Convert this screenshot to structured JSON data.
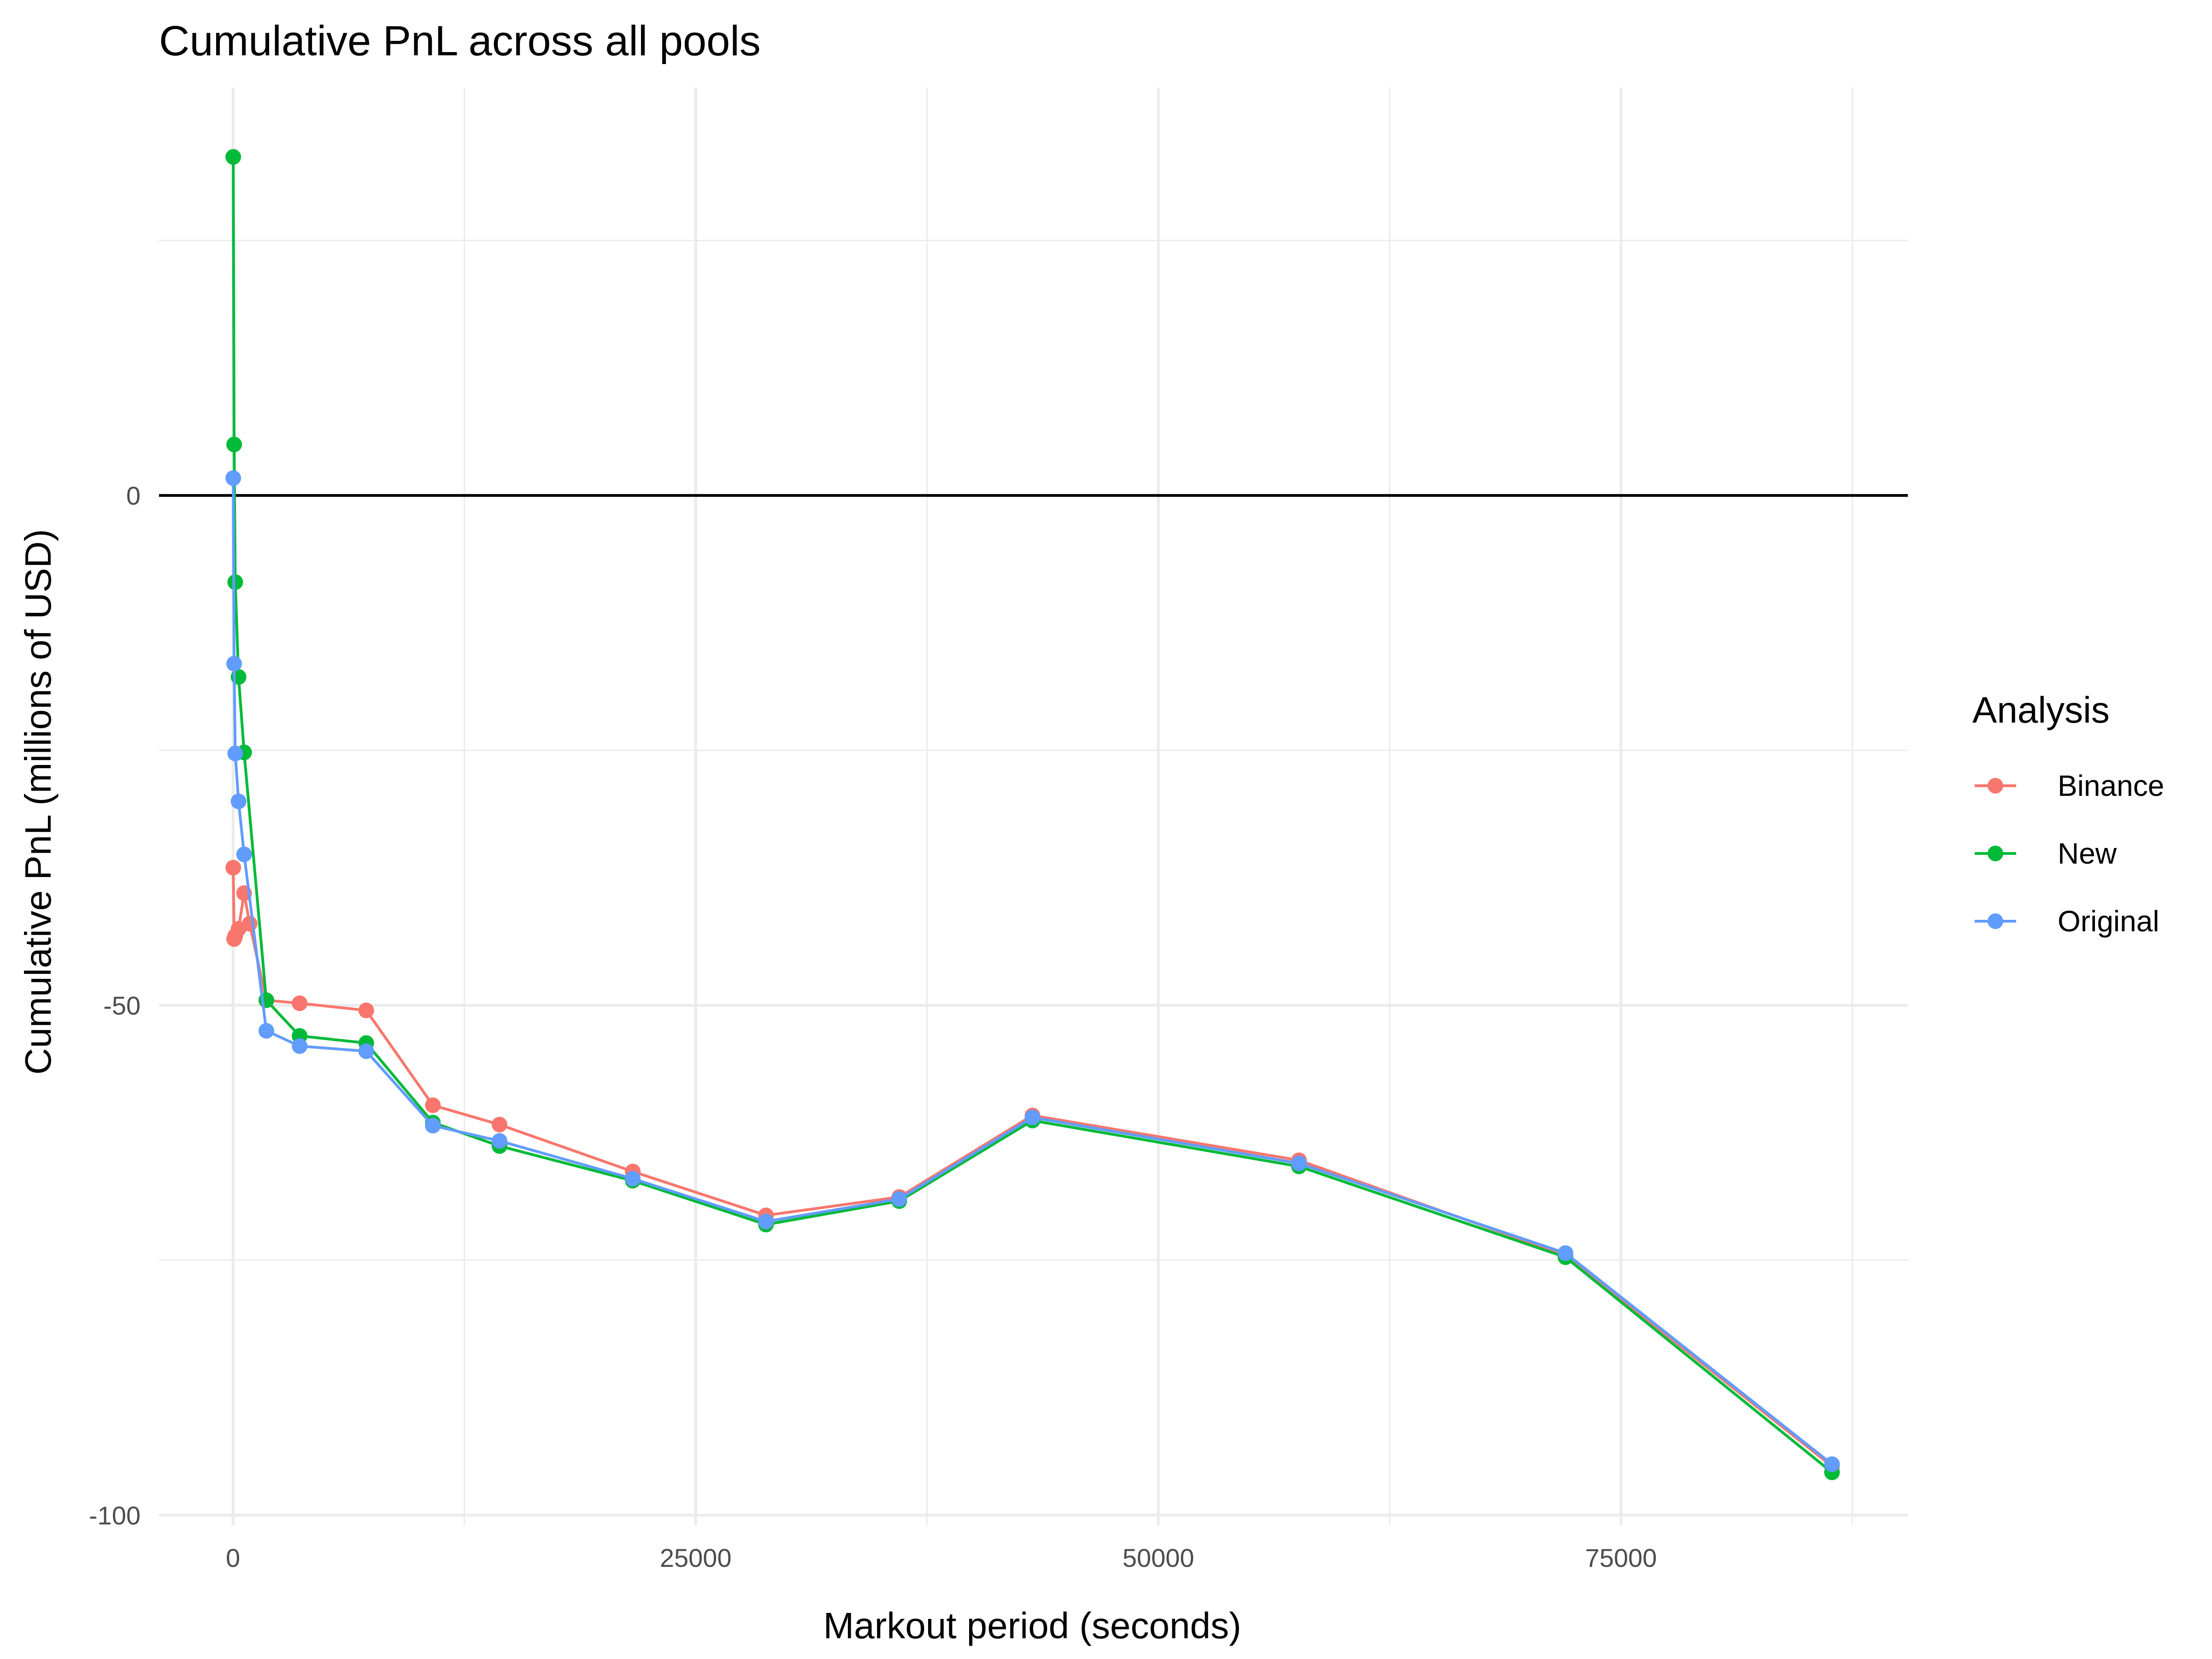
{
  "chart_data": {
    "type": "line",
    "title": "Cumulative PnL across all pools",
    "xlabel": "Markout period (seconds)",
    "ylabel": "Cumulative PnL (millions of USD)",
    "xlim": [
      -4000,
      90500
    ],
    "ylim": [
      -101,
      40
    ],
    "x_ticks": [
      0,
      25000,
      50000,
      75000
    ],
    "x_tick_labels": [
      "0",
      "25000",
      "50000",
      "75000"
    ],
    "y_ticks": [
      0,
      -50,
      -100
    ],
    "y_tick_labels": [
      "0",
      "-50",
      "-100"
    ],
    "grid": true,
    "reference_line_y": 0,
    "legend": {
      "title": "Analysis",
      "position": "right"
    },
    "series": [
      {
        "name": "Binance",
        "color": "#F8766D",
        "points": [
          [
            12,
            -36.5
          ],
          [
            60,
            -43.5
          ],
          [
            120,
            -43.2
          ],
          [
            300,
            -42.5
          ],
          [
            600,
            -39.0
          ],
          [
            900,
            -42.0
          ],
          [
            1800,
            -49.5
          ],
          [
            3600,
            -49.8
          ],
          [
            7200,
            -50.5
          ],
          [
            10800,
            -59.8
          ],
          [
            14400,
            -61.7
          ],
          [
            21600,
            -66.3
          ],
          [
            28800,
            -70.6
          ],
          [
            36000,
            -68.8
          ],
          [
            43200,
            -60.8
          ],
          [
            57600,
            -65.2
          ],
          [
            72000,
            -74.5
          ],
          [
            86400,
            -95.2
          ]
        ]
      },
      {
        "name": "New",
        "color": "#00BA38",
        "points": [
          [
            12,
            33.2
          ],
          [
            60,
            5.0
          ],
          [
            120,
            -8.5
          ],
          [
            300,
            -17.8
          ],
          [
            600,
            -25.2
          ],
          [
            1800,
            -49.5
          ],
          [
            3600,
            -53.0
          ],
          [
            7200,
            -53.7
          ],
          [
            10800,
            -61.5
          ],
          [
            14400,
            -63.8
          ],
          [
            21600,
            -67.2
          ],
          [
            28800,
            -71.5
          ],
          [
            36000,
            -69.2
          ],
          [
            43200,
            -61.3
          ],
          [
            57600,
            -65.8
          ],
          [
            72000,
            -74.7
          ],
          [
            86400,
            -95.8
          ]
        ]
      },
      {
        "name": "Original",
        "color": "#619CFF",
        "points": [
          [
            12,
            1.7
          ],
          [
            60,
            -16.5
          ],
          [
            120,
            -25.3
          ],
          [
            300,
            -30.0
          ],
          [
            600,
            -35.2
          ],
          [
            1800,
            -52.5
          ],
          [
            3600,
            -54.0
          ],
          [
            7200,
            -54.5
          ],
          [
            10800,
            -61.8
          ],
          [
            14400,
            -63.3
          ],
          [
            21600,
            -67.0
          ],
          [
            28800,
            -71.2
          ],
          [
            36000,
            -69.0
          ],
          [
            43200,
            -61.0
          ],
          [
            57600,
            -65.5
          ],
          [
            72000,
            -74.3
          ],
          [
            86400,
            -95.0
          ]
        ]
      }
    ]
  }
}
